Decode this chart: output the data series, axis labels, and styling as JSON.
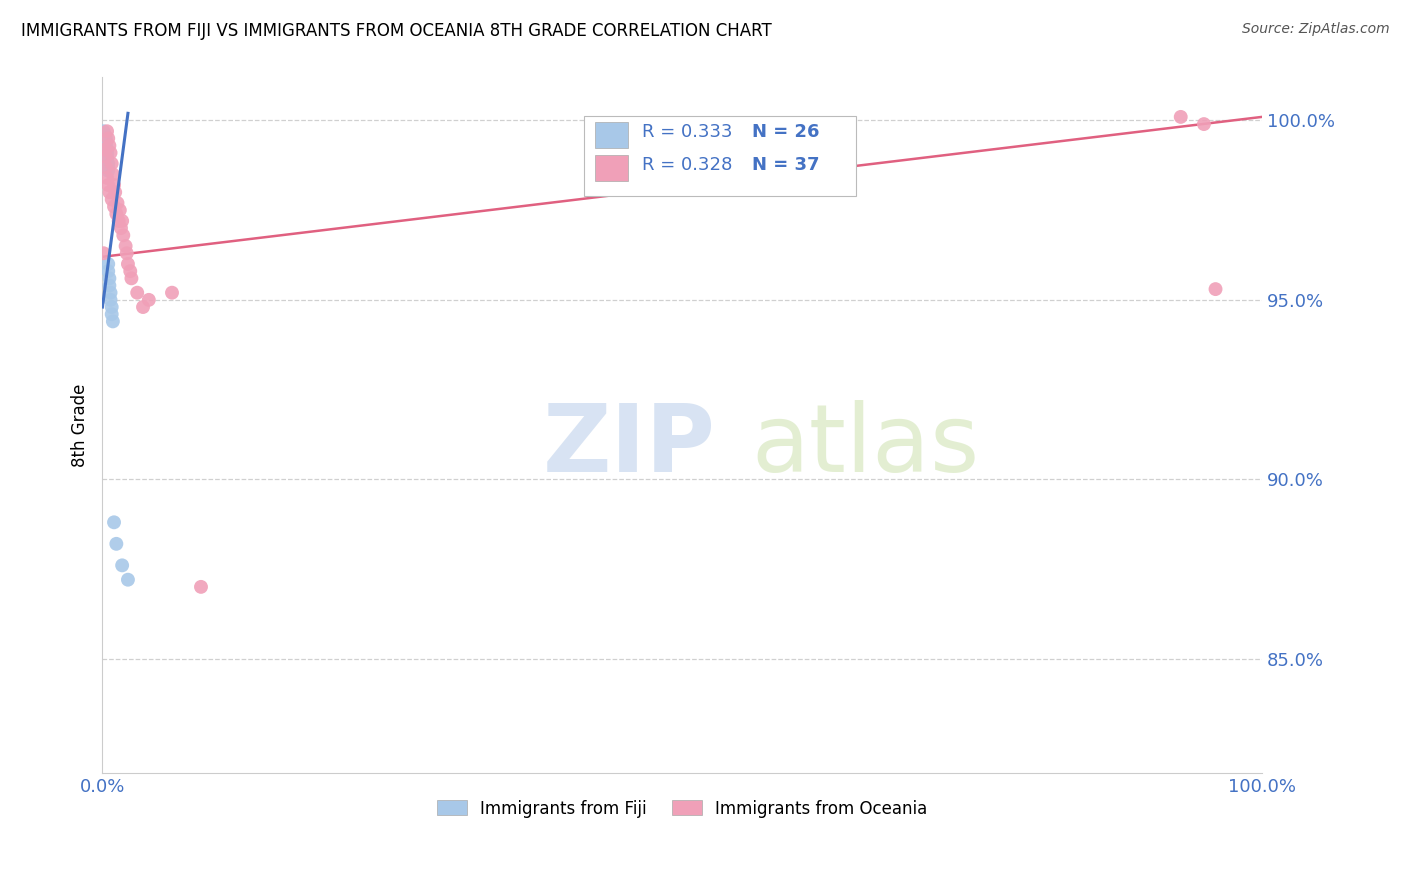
{
  "title": "IMMIGRANTS FROM FIJI VS IMMIGRANTS FROM OCEANIA 8TH GRADE CORRELATION CHART",
  "source": "Source: ZipAtlas.com",
  "ylabel": "8th Grade",
  "ytick_labels": [
    "85.0%",
    "90.0%",
    "95.0%",
    "100.0%"
  ],
  "ytick_values": [
    0.85,
    0.9,
    0.95,
    1.0
  ],
  "xlim": [
    0.0,
    1.0
  ],
  "ylim": [
    0.818,
    1.012
  ],
  "fiji_color": "#a8c8e8",
  "oceania_color": "#f0a0b8",
  "fiji_line_color": "#4472c4",
  "oceania_line_color": "#e06080",
  "fiji_R": 0.333,
  "fiji_N": 26,
  "oceania_R": 0.328,
  "oceania_N": 37,
  "legend_label_fiji": "Immigrants from Fiji",
  "legend_label_oceania": "Immigrants from Oceania",
  "fiji_scatter_x": [
    0.001,
    0.002,
    0.002,
    0.003,
    0.003,
    0.003,
    0.004,
    0.004,
    0.004,
    0.004,
    0.005,
    0.005,
    0.005,
    0.005,
    0.005,
    0.006,
    0.006,
    0.007,
    0.007,
    0.008,
    0.008,
    0.009,
    0.01,
    0.012,
    0.017,
    0.022
  ],
  "fiji_scatter_y": [
    0.997,
    0.996,
    0.995,
    0.995,
    0.994,
    0.993,
    0.992,
    0.991,
    0.99,
    0.989,
    0.988,
    0.987,
    0.986,
    0.96,
    0.958,
    0.956,
    0.954,
    0.952,
    0.95,
    0.948,
    0.946,
    0.944,
    0.888,
    0.882,
    0.876,
    0.872
  ],
  "oceania_scatter_x": [
    0.001,
    0.002,
    0.003,
    0.003,
    0.004,
    0.004,
    0.005,
    0.005,
    0.006,
    0.006,
    0.007,
    0.008,
    0.008,
    0.009,
    0.01,
    0.01,
    0.011,
    0.012,
    0.013,
    0.014,
    0.015,
    0.016,
    0.017,
    0.018,
    0.02,
    0.021,
    0.022,
    0.024,
    0.025,
    0.03,
    0.035,
    0.04,
    0.06,
    0.085,
    0.93,
    0.95,
    0.96
  ],
  "oceania_scatter_y": [
    0.963,
    0.992,
    0.99,
    0.987,
    0.997,
    0.984,
    0.995,
    0.982,
    0.993,
    0.98,
    0.991,
    0.988,
    0.978,
    0.985,
    0.982,
    0.976,
    0.98,
    0.974,
    0.977,
    0.972,
    0.975,
    0.97,
    0.972,
    0.968,
    0.965,
    0.963,
    0.96,
    0.958,
    0.956,
    0.952,
    0.948,
    0.95,
    0.952,
    0.87,
    1.001,
    0.999,
    0.953
  ],
  "fiji_line_x": [
    0.0,
    0.022
  ],
  "fiji_line_y": [
    0.948,
    1.002
  ],
  "oceania_line_x": [
    0.0,
    1.0
  ],
  "oceania_line_y": [
    0.962,
    1.001
  ],
  "watermark_zip": "ZIP",
  "watermark_atlas": "atlas",
  "background_color": "#ffffff",
  "grid_color": "#d0d0d0",
  "legend_box_color": "#cccccc",
  "label_color": "#4472c4"
}
